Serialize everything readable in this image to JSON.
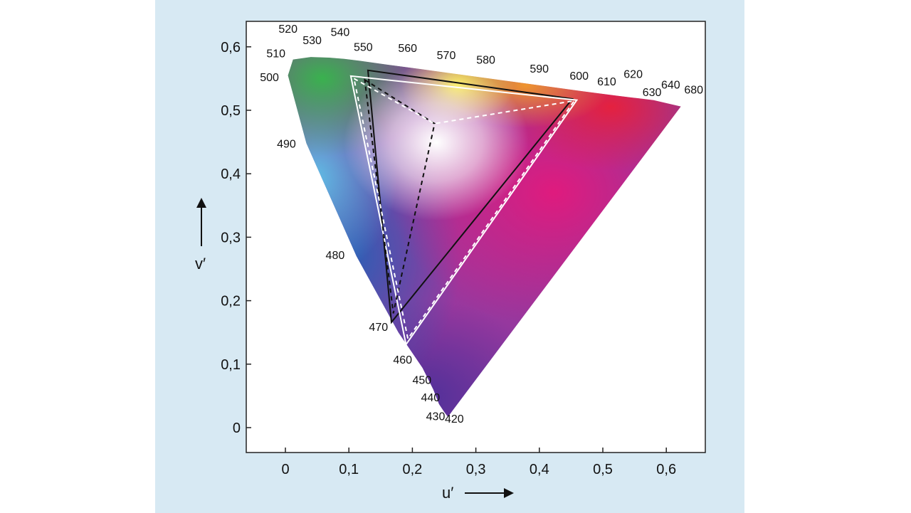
{
  "chart_data": {
    "type": "scatter",
    "title": "",
    "xlabel": "u′",
    "ylabel": "v′",
    "xlim": [
      -0.06,
      0.66
    ],
    "ylim": [
      -0.04,
      0.64
    ],
    "x_ticks": [
      {
        "value": 0,
        "label": "0"
      },
      {
        "value": 0.1,
        "label": "0,1"
      },
      {
        "value": 0.2,
        "label": "0,2"
      },
      {
        "value": 0.3,
        "label": "0,3"
      },
      {
        "value": 0.4,
        "label": "0,4"
      },
      {
        "value": 0.5,
        "label": "0,5"
      },
      {
        "value": 0.6,
        "label": "0,6"
      }
    ],
    "y_ticks": [
      {
        "value": 0,
        "label": "0"
      },
      {
        "value": 0.1,
        "label": "0,1"
      },
      {
        "value": 0.2,
        "label": "0,2"
      },
      {
        "value": 0.3,
        "label": "0,3"
      },
      {
        "value": 0.4,
        "label": "0,4"
      },
      {
        "value": 0.5,
        "label": "0,5"
      },
      {
        "value": 0.6,
        "label": "0,6"
      }
    ],
    "spectral_locus": [
      {
        "label": "420",
        "u": 0.256,
        "v": 0.017
      },
      {
        "label": "430",
        "u": 0.25,
        "v": 0.025
      },
      {
        "label": "440",
        "u": 0.242,
        "v": 0.037
      },
      {
        "label": "450",
        "u": 0.233,
        "v": 0.06
      },
      {
        "label": "460",
        "u": 0.216,
        "v": 0.094
      },
      {
        "label": "470",
        "u": 0.178,
        "v": 0.15
      },
      {
        "label": "480",
        "u": 0.112,
        "v": 0.27
      },
      {
        "label": "490",
        "u": 0.033,
        "v": 0.448
      },
      {
        "label": "500",
        "u": 0.004,
        "v": 0.555
      },
      {
        "label": "510",
        "u": 0.012,
        "v": 0.58
      },
      {
        "label": "520",
        "u": 0.04,
        "v": 0.584
      },
      {
        "label": "530",
        "u": 0.069,
        "v": 0.583
      },
      {
        "label": "540",
        "u": 0.093,
        "v": 0.581
      },
      {
        "label": "550",
        "u": 0.117,
        "v": 0.578
      },
      {
        "label": "560",
        "u": 0.16,
        "v": 0.572
      },
      {
        "label": "570",
        "u": 0.213,
        "v": 0.565
      },
      {
        "label": "580",
        "u": 0.263,
        "v": 0.558
      },
      {
        "label": "590",
        "u": 0.336,
        "v": 0.548
      },
      {
        "label": "600",
        "u": 0.41,
        "v": 0.538
      },
      {
        "label": "610",
        "u": 0.468,
        "v": 0.53
      },
      {
        "label": "620",
        "u": 0.522,
        "v": 0.523
      },
      {
        "label": "630",
        "u": 0.555,
        "v": 0.519
      },
      {
        "label": "640",
        "u": 0.58,
        "v": 0.516
      },
      {
        "label": "680",
        "u": 0.623,
        "v": 0.506
      }
    ],
    "series": [
      {
        "style": "black-solid",
        "points": [
          {
            "u": 0.13,
            "v": 0.563
          },
          {
            "u": 0.452,
            "v": 0.518
          },
          {
            "u": 0.167,
            "v": 0.166
          }
        ]
      },
      {
        "style": "white-solid",
        "points": [
          {
            "u": 0.103,
            "v": 0.554
          },
          {
            "u": 0.459,
            "v": 0.516
          },
          {
            "u": 0.19,
            "v": 0.131
          }
        ]
      },
      {
        "style": "black-dashed",
        "points": [
          {
            "u": 0.125,
            "v": 0.548
          },
          {
            "u": 0.235,
            "v": 0.479
          },
          {
            "u": 0.17,
            "v": 0.18
          }
        ]
      },
      {
        "style": "white-dashed",
        "points": [
          {
            "u": 0.108,
            "v": 0.55
          },
          {
            "u": 0.235,
            "v": 0.479
          },
          {
            "u": 0.455,
            "v": 0.515
          },
          {
            "u": 0.193,
            "v": 0.14
          }
        ]
      }
    ],
    "grid": false,
    "legend": "none"
  },
  "colors": {
    "panel_background": "#d7e9f3",
    "plot_background": "#ffffff",
    "triangle_dark": "#111111",
    "triangle_light": "#ffffff"
  }
}
